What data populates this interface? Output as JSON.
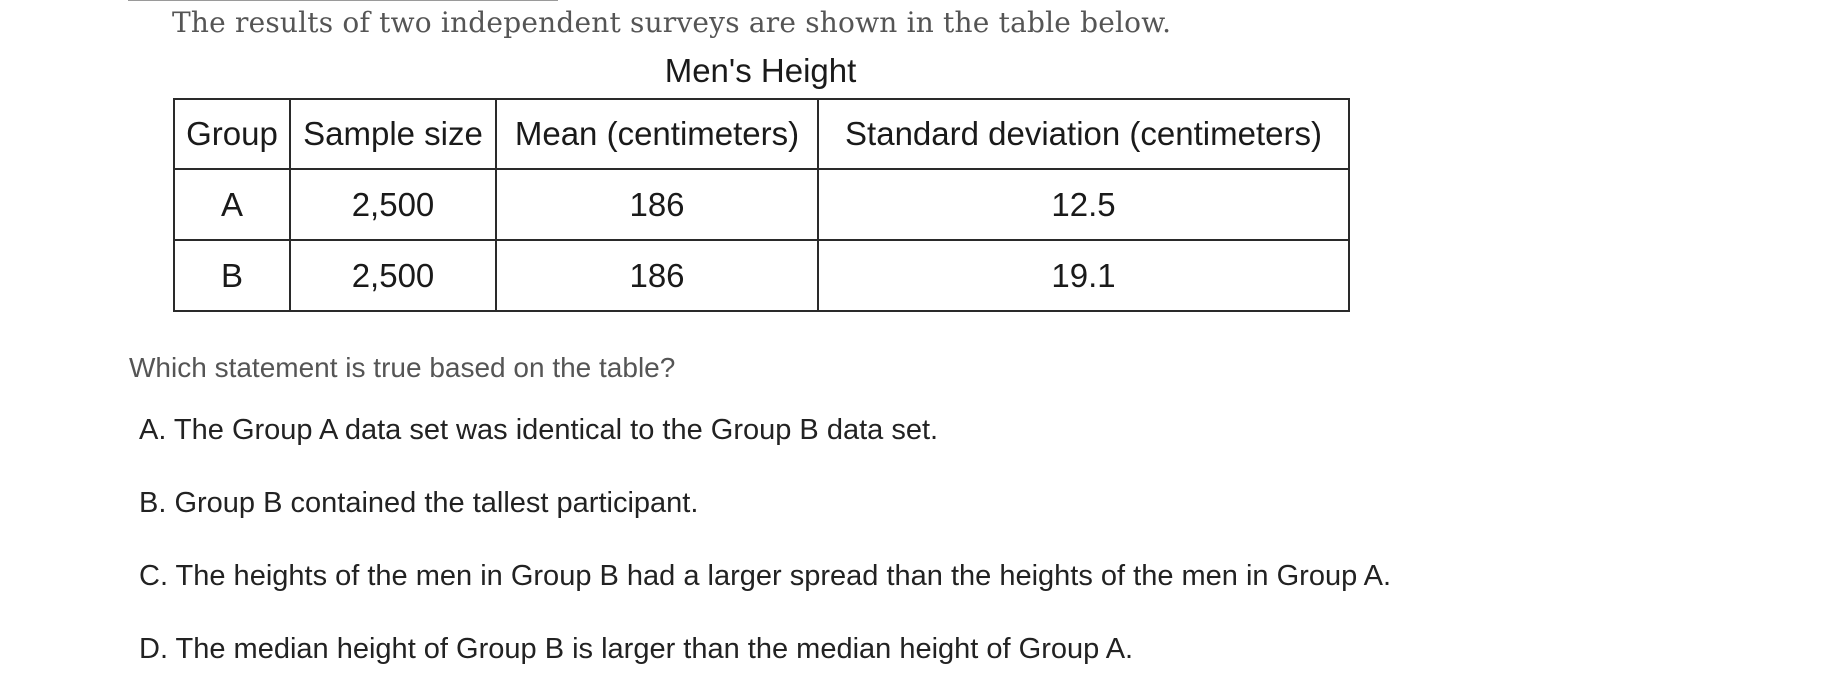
{
  "intro_text": "The results of two independent surveys are shown in the table below.",
  "table": {
    "title": "Men's Height",
    "headers": [
      "Group",
      "Sample size",
      "Mean (centimeters)",
      "Standard deviation (centimeters)"
    ],
    "rows": [
      [
        "A",
        "2,500",
        "186",
        "12.5"
      ],
      [
        "B",
        "2,500",
        "186",
        "19.1"
      ]
    ]
  },
  "question": "Which statement is true based on the table?",
  "choices": [
    "A. The Group A data set was identical to the Group B data set.",
    "B. Group B contained the tallest participant.",
    "C. The heights of the men in Group B had a larger spread than the heights of the men in Group A.",
    "D. The median height of Group B is larger than the median height of Group A."
  ]
}
